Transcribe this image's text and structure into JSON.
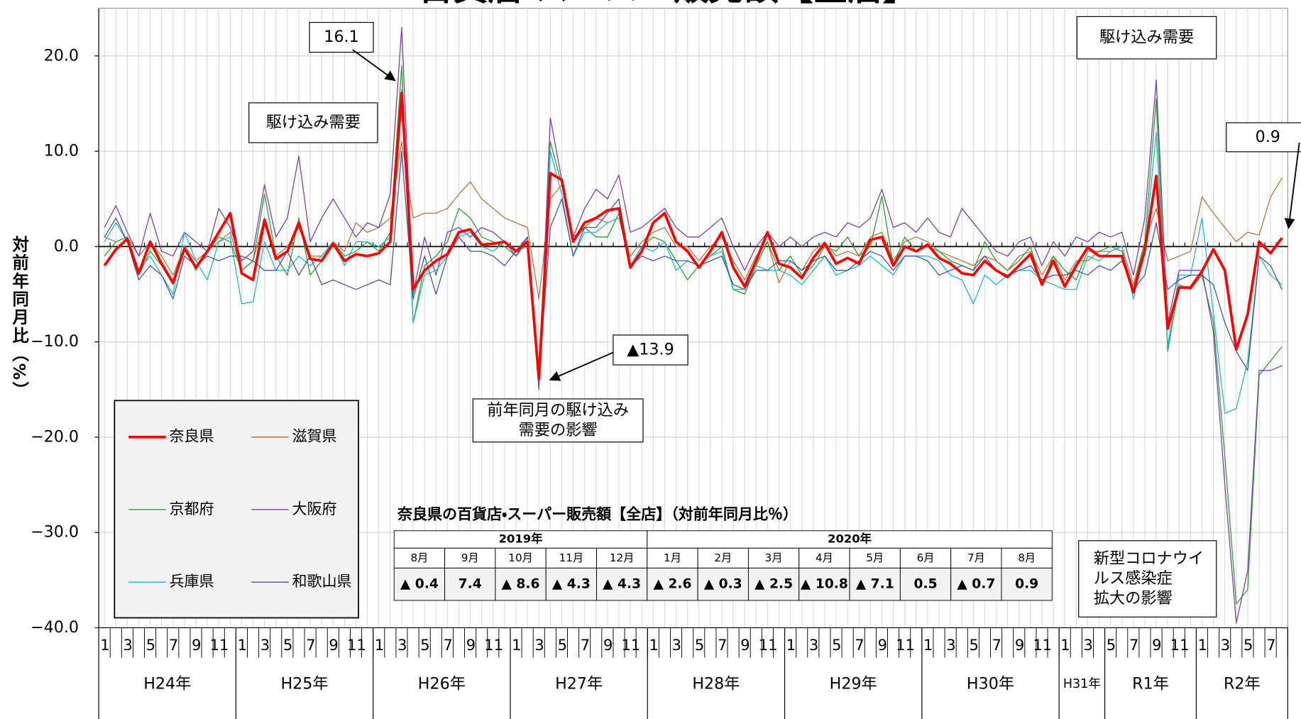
{
  "chart_data": {
    "type": "line",
    "title": "百貨店・スーパー販売額【全店】",
    "y_label": "対前年同月比（%）",
    "categories": [
      "1",
      null,
      "3",
      null,
      "5",
      null,
      "7",
      null,
      "9",
      null,
      "11",
      null,
      "1",
      null,
      "3",
      null,
      "5",
      null,
      "7",
      null,
      "9",
      null,
      "11",
      null,
      "1",
      null,
      "3",
      null,
      "5",
      null,
      "7",
      null,
      "9",
      null,
      "11",
      null,
      "1",
      null,
      "3",
      null,
      "5",
      null,
      "7",
      null,
      "9",
      null,
      "11",
      null,
      "1",
      null,
      "3",
      null,
      "5",
      null,
      "7",
      null,
      "9",
      null,
      "11",
      null,
      "1",
      null,
      "3",
      null,
      "5",
      null,
      "7",
      null,
      "9",
      null,
      "11",
      null,
      "1",
      null,
      "3",
      null,
      "5",
      null,
      "7",
      null,
      "9",
      null,
      "11",
      null,
      "1",
      null,
      "3",
      null,
      "5",
      null,
      "7",
      null,
      "9",
      null,
      "11",
      null,
      "1",
      null,
      "3",
      null,
      "5",
      null,
      "7",
      null
    ],
    "year_groups": [
      "H24年",
      "H25年",
      "H26年",
      "H27年",
      "H28年",
      "H29年",
      "H30年",
      "H31年",
      "R1年",
      "R2年"
    ],
    "ylim": [
      -40,
      25
    ],
    "yticks": [
      {
        "value": -40,
        "label": "−40.0"
      },
      {
        "value": -30,
        "label": "−30.0"
      },
      {
        "value": -20,
        "label": "−20.0"
      },
      {
        "value": -10,
        "label": "−10.0"
      },
      {
        "value": 0,
        "label": "0.0"
      },
      {
        "value": 10,
        "label": "10.0"
      },
      {
        "value": 20,
        "label": "20.0"
      }
    ],
    "grid": true,
    "legend": "lower left",
    "series": [
      {
        "name": "奈良県",
        "color": "#ff0000",
        "values": [
          -2.0,
          -0.3,
          0.8,
          -2.8,
          0.5,
          -1.8,
          -3.8,
          -0.2,
          -2.2,
          -0.5,
          1.5,
          3.5,
          -2.8,
          -3.5,
          2.8,
          -1.3,
          -0.5,
          2.5,
          -1.3,
          -1.5,
          0.3,
          -1.5,
          -0.8,
          -1.0,
          -0.7,
          0.5,
          16.1,
          -4.5,
          -2.5,
          -1.5,
          -0.8,
          1.5,
          1.8,
          0.2,
          0.3,
          0.5,
          -0.5,
          0.5,
          -13.9,
          7.7,
          7.0,
          0.5,
          2.5,
          3.0,
          3.8,
          4.0,
          -2.2,
          -0.5,
          2.5,
          3.5,
          0.5,
          -0.5,
          -2.2,
          -0.5,
          1.5,
          -2.2,
          -4.2,
          -1.5,
          1.5,
          -1.8,
          -2.2,
          -3.3,
          -1.2,
          0.3,
          -1.8,
          -1.2,
          -1.8,
          0.7,
          1.0,
          -2.0,
          0.0,
          -0.5,
          0.2,
          -1.2,
          -1.8,
          -2.8,
          -3.0,
          -1.5,
          -2.5,
          -3.2,
          -2.0,
          -0.8,
          -4.0,
          -1.5,
          -4.2,
          -2.0,
          -0.1,
          -1.0,
          -1.0,
          -1.0,
          -4.8,
          -0.4,
          7.4,
          -8.6,
          -4.3,
          -4.3,
          -2.6,
          -0.3,
          -2.5,
          -10.8,
          -7.1,
          0.5,
          -0.7,
          0.9
        ]
      },
      {
        "name": "滋賀県",
        "color": "#b8743f",
        "values": [
          1.0,
          0.5,
          1.0,
          -1.0,
          0.5,
          -1.0,
          -3.0,
          0.0,
          -1.5,
          -0.5,
          0.5,
          1.5,
          -2.5,
          -1.5,
          3.0,
          -1.0,
          0.0,
          2.0,
          -1.0,
          -1.0,
          0.5,
          -0.5,
          2.5,
          1.5,
          2.0,
          3.0,
          11.0,
          3.0,
          3.5,
          3.5,
          4.0,
          5.5,
          6.8,
          5.0,
          4.0,
          3.0,
          2.5,
          2.0,
          -5.5,
          5.0,
          6.5,
          1.0,
          2.0,
          3.0,
          2.5,
          3.0,
          -1.0,
          0.5,
          1.5,
          2.0,
          0.0,
          0.0,
          -1.5,
          0.0,
          1.0,
          -1.5,
          -3.5,
          -1.0,
          0.5,
          -3.8,
          -1.5,
          -2.5,
          -0.5,
          0.5,
          -1.0,
          -0.5,
          -1.0,
          1.0,
          1.5,
          -1.5,
          0.5,
          1.0,
          0.5,
          -0.5,
          -1.0,
          -1.5,
          -2.0,
          -1.0,
          -1.5,
          -2.5,
          -1.0,
          -0.5,
          -3.0,
          -1.0,
          -3.5,
          -1.5,
          -1.5,
          -0.5,
          -0.5,
          0.0,
          -4.0,
          0.5,
          4.0,
          -1.5,
          -1.0,
          -0.5,
          5.2,
          3.5,
          2.0,
          0.5,
          1.5,
          1.2,
          5.2,
          7.2
        ]
      },
      {
        "name": "京都府",
        "color": "#2ca02c",
        "values": [
          -1.0,
          0.5,
          1.0,
          -3.0,
          -0.5,
          -2.0,
          -4.0,
          0.0,
          -2.5,
          -0.5,
          1.0,
          0.5,
          -2.5,
          -1.5,
          5.5,
          -1.0,
          -3.0,
          3.0,
          -3.0,
          -1.5,
          0.5,
          -1.0,
          -0.5,
          0.5,
          -0.5,
          1.5,
          19.0,
          -8.0,
          -2.0,
          -1.0,
          0.5,
          4.0,
          3.0,
          1.0,
          0.5,
          0.0,
          -1.0,
          0.5,
          -14.0,
          11.0,
          6.5,
          0.5,
          2.0,
          1.0,
          1.0,
          3.5,
          -2.0,
          0.0,
          1.0,
          0.5,
          -1.5,
          -3.5,
          -2.0,
          -1.0,
          0.0,
          -4.5,
          -5.0,
          -2.0,
          0.5,
          -2.5,
          -1.0,
          -3.0,
          -2.0,
          0.0,
          -0.5,
          1.0,
          -1.0,
          0.0,
          5.3,
          -2.0,
          1.0,
          -0.5,
          0.0,
          -0.5,
          -1.5,
          -2.0,
          -2.5,
          0.5,
          -1.5,
          -2.5,
          -1.5,
          0.0,
          -4.0,
          -1.0,
          -2.5,
          -3.5,
          -0.5,
          -0.5,
          0.0,
          -0.5,
          -4.5,
          0.5,
          15.5,
          -11.0,
          -4.0,
          -4.5,
          -3.0,
          -8.0,
          -22.0,
          -37.5,
          -36.0,
          -13.5,
          -12.0,
          -10.5
        ]
      },
      {
        "name": "大阪府",
        "color": "#7b3fb0",
        "values": [
          2.0,
          4.3,
          1.5,
          -1.0,
          3.5,
          -0.5,
          -1.0,
          1.5,
          0.5,
          -0.5,
          4.0,
          2.0,
          -1.5,
          -0.5,
          6.5,
          1.0,
          3.0,
          9.5,
          0.5,
          3.0,
          5.0,
          3.0,
          1.0,
          2.5,
          2.0,
          5.5,
          23.0,
          -5.0,
          1.0,
          -3.0,
          1.5,
          2.0,
          1.0,
          2.0,
          1.5,
          0.5,
          -1.0,
          1.0,
          -15.0,
          13.5,
          7.0,
          1.0,
          4.0,
          6.0,
          5.0,
          7.5,
          1.5,
          2.0,
          3.0,
          4.0,
          2.0,
          1.0,
          1.0,
          2.0,
          3.0,
          0.0,
          -2.5,
          0.0,
          1.5,
          0.0,
          1.0,
          0.0,
          1.0,
          1.5,
          1.0,
          2.5,
          2.0,
          3.0,
          6.0,
          2.0,
          2.5,
          1.5,
          3.0,
          1.5,
          1.0,
          4.0,
          2.5,
          1.0,
          -0.5,
          -1.0,
          0.5,
          1.0,
          -2.0,
          0.5,
          -1.0,
          1.0,
          0.5,
          1.5,
          1.0,
          1.5,
          -3.0,
          3.0,
          17.5,
          -8.0,
          -2.5,
          -2.5,
          -2.5,
          -9.0,
          -25.0,
          -39.5,
          -34.0,
          -13.0,
          -13.0,
          -12.5
        ]
      },
      {
        "name": "兵庫県",
        "color": "#22b5d8",
        "values": [
          0.5,
          2.5,
          0.5,
          -2.5,
          -1.0,
          -3.0,
          -5.0,
          1.5,
          -1.5,
          -3.5,
          0.5,
          1.0,
          -6.0,
          -5.8,
          0.5,
          -2.5,
          -2.5,
          -1.0,
          -2.0,
          -1.0,
          0.5,
          -2.0,
          0.5,
          0.5,
          0.0,
          1.0,
          16.5,
          -8.0,
          -3.0,
          -2.5,
          -1.0,
          1.0,
          1.5,
          0.0,
          -0.5,
          0.5,
          -0.5,
          0.0,
          -14.0,
          10.0,
          5.5,
          -1.0,
          1.5,
          1.5,
          2.5,
          3.0,
          -2.0,
          0.0,
          -0.5,
          0.5,
          -2.5,
          -1.5,
          -2.0,
          -1.0,
          -0.5,
          -4.5,
          -4.5,
          -2.0,
          -2.5,
          -2.5,
          -3.0,
          -4.0,
          -2.5,
          -1.0,
          -3.0,
          -2.5,
          -2.0,
          -1.0,
          -2.0,
          -3.0,
          -1.0,
          -1.0,
          -1.0,
          -1.5,
          -3.0,
          -3.5,
          -6.0,
          -3.0,
          -4.0,
          -3.0,
          -2.5,
          -2.5,
          -3.5,
          -4.0,
          -4.5,
          -4.5,
          -1.0,
          -1.5,
          -0.5,
          0.0,
          -5.5,
          -0.5,
          12.0,
          -10.5,
          -3.0,
          -3.0,
          3.0,
          -7.0,
          -17.5,
          -17.0,
          -12.0,
          -1.0,
          -3.0,
          -4.0
        ]
      },
      {
        "name": "和歌山県",
        "color": "#44559a",
        "values": [
          1.0,
          3.0,
          0.5,
          -3.5,
          -2.0,
          -3.0,
          -5.5,
          -1.0,
          -2.0,
          -1.0,
          -1.5,
          -1.0,
          -1.0,
          -1.5,
          -2.5,
          -2.5,
          -0.5,
          -3.0,
          -1.0,
          -4.0,
          -3.5,
          -4.0,
          -4.5,
          -4.0,
          -3.5,
          -4.0,
          10.0,
          -5.5,
          -1.0,
          -5.0,
          -1.0,
          1.0,
          -0.5,
          -0.5,
          -1.0,
          -2.0,
          -0.5,
          1.0,
          -13.5,
          2.0,
          5.0,
          -1.0,
          2.0,
          2.0,
          3.5,
          5.0,
          -2.0,
          -1.0,
          -1.5,
          -1.0,
          -1.5,
          -1.5,
          -2.0,
          -1.5,
          -1.0,
          -4.0,
          -4.5,
          -2.5,
          -2.5,
          -1.5,
          -1.5,
          -2.5,
          -1.5,
          -1.0,
          -2.5,
          -2.5,
          -1.5,
          -0.5,
          -1.0,
          -2.5,
          -1.0,
          -1.0,
          -1.5,
          -3.0,
          -2.5,
          -2.0,
          -2.5,
          -1.0,
          -2.5,
          -3.0,
          -2.5,
          -2.0,
          -3.5,
          -3.0,
          -3.0,
          -2.5,
          -3.0,
          -2.0,
          -2.5,
          -1.5,
          -4.5,
          -3.0,
          2.5,
          -4.5,
          -3.5,
          -3.0,
          -3.0,
          -4.0,
          -8.0,
          -11.0,
          -13.0,
          -1.0,
          -2.0,
          -4.5
        ]
      }
    ],
    "annotations": [
      {
        "text": "16.1"
      },
      {
        "text": "駆け込み需要"
      },
      {
        "text": "▲13.9"
      },
      {
        "lines": [
          "前年同月の駆け込み",
          "需要の影響"
        ]
      },
      {
        "text": "駆け込み需要"
      },
      {
        "text": "0.9"
      },
      {
        "lines": [
          "新型コロナウイ",
          "ルス感染症",
          "拡大の影響"
        ]
      }
    ]
  },
  "table": {
    "title": "奈良県の百貨店・スーパー販売額【全店】（対前年同月比％）",
    "groups": [
      {
        "label": "2019年",
        "months": [
          "8月",
          "9月",
          "10月",
          "11月",
          "12月"
        ],
        "values": [
          "▲ 0.4",
          "7.4",
          "▲ 8.6",
          "▲ 4.3",
          "▲ 4.3"
        ]
      },
      {
        "label": "2020年",
        "months": [
          "1月",
          "2月",
          "3月",
          "4月",
          "5月",
          "6月",
          "7月",
          "8月"
        ],
        "values": [
          "▲ 2.6",
          "▲ 0.3",
          "▲ 2.5",
          "▲ 10.8",
          "▲ 7.1",
          "0.5",
          "▲ 0.7",
          "0.9"
        ]
      }
    ]
  }
}
